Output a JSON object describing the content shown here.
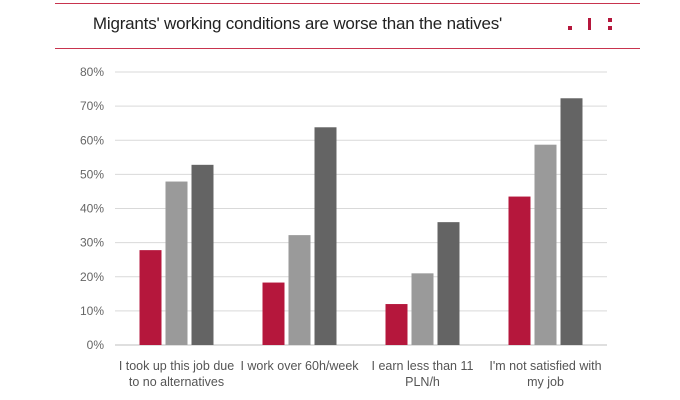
{
  "header": {
    "title": "Migrants' working conditions are worse than the natives'"
  },
  "colors": {
    "accent": "#b5173c",
    "series": [
      "#b5173c",
      "#9a9a9a",
      "#646464"
    ],
    "grid": "#d9d9d9"
  },
  "chart_data": {
    "type": "bar",
    "title": "Migrants' working conditions are worse than the natives'",
    "categories": [
      [
        "I took up this job due",
        "to no alternatives"
      ],
      [
        "I work over 60h/week"
      ],
      [
        "I earn less than 11",
        "PLN/h"
      ],
      [
        "I'm not satisfied with",
        "my job"
      ]
    ],
    "series": [
      {
        "values": [
          27.8,
          18.3,
          12.0,
          43.5
        ]
      },
      {
        "values": [
          47.9,
          32.2,
          21.0,
          58.7
        ]
      },
      {
        "values": [
          52.8,
          63.8,
          36.0,
          72.3
        ]
      }
    ],
    "ylim": [
      0,
      80
    ],
    "yticks": [
      "0%",
      "10%",
      "20%",
      "30%",
      "40%",
      "50%",
      "60%",
      "70%",
      "80%"
    ],
    "grid": true,
    "legend": "none",
    "xlabel": "",
    "ylabel": ""
  }
}
